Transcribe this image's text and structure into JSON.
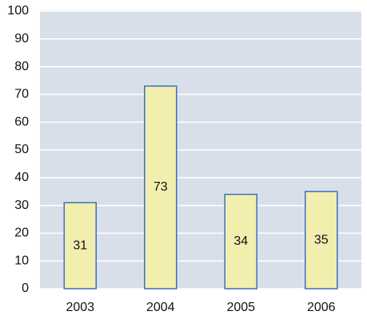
{
  "chart_data": {
    "type": "bar",
    "categories": [
      "2003",
      "2004",
      "2005",
      "2006"
    ],
    "values": [
      31,
      73,
      34,
      35
    ],
    "color": "#f2eeae",
    "edge_color": "#3b6fc0",
    "ylim": [
      0,
      100
    ],
    "yticks": [
      0,
      10,
      20,
      30,
      40,
      50,
      60,
      70,
      80,
      90,
      100
    ],
    "grid": true,
    "data_labels": true
  }
}
